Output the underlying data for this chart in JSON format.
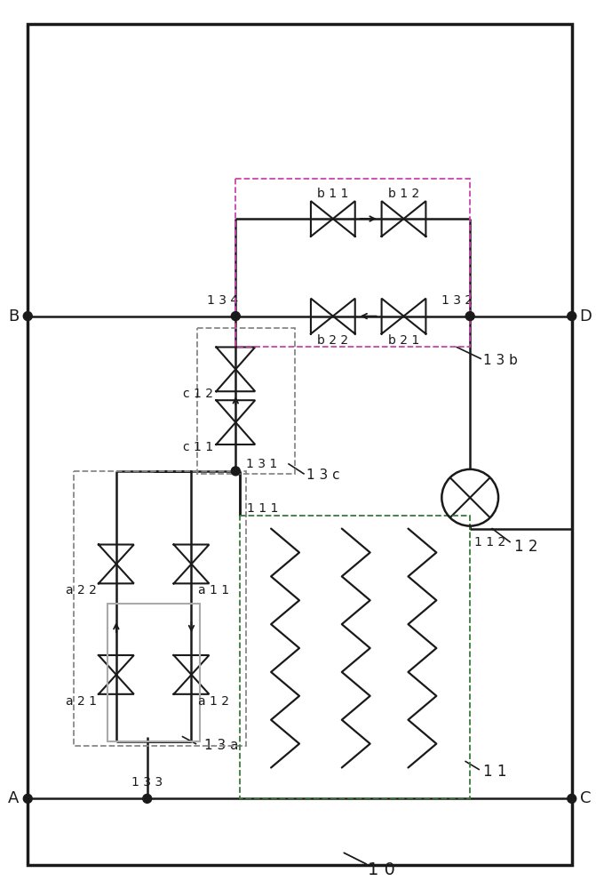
{
  "fig_width": 6.71,
  "fig_height": 10.0,
  "lc": "#1a1a1a",
  "green_dash": "#3a7a3a",
  "gray_dash": "#888888",
  "pink_dash": "#cc44aa",
  "bg": "#ffffff",
  "labels": {
    "10": "1 0",
    "11": "1 1",
    "12": "1 2",
    "13a": "1 3 a",
    "13b": "1 3 b",
    "13c": "1 3 c",
    "133": "1 3 3",
    "134": "1 3 4",
    "131": "1 3 1",
    "132": "1 3 2",
    "111": "1 1 1",
    "112": "1 1 2",
    "a21": "a 2 1",
    "a22": "a 2 2",
    "a12": "a 1 2",
    "a11": "a 1 1",
    "b22": "b 2 2",
    "b21": "b 2 1",
    "b11": "b 1 1",
    "b12": "b 1 2",
    "c11": "c 1 1",
    "c12": "c 1 2",
    "A": "A",
    "B": "B",
    "C": "C",
    "D": "D"
  }
}
